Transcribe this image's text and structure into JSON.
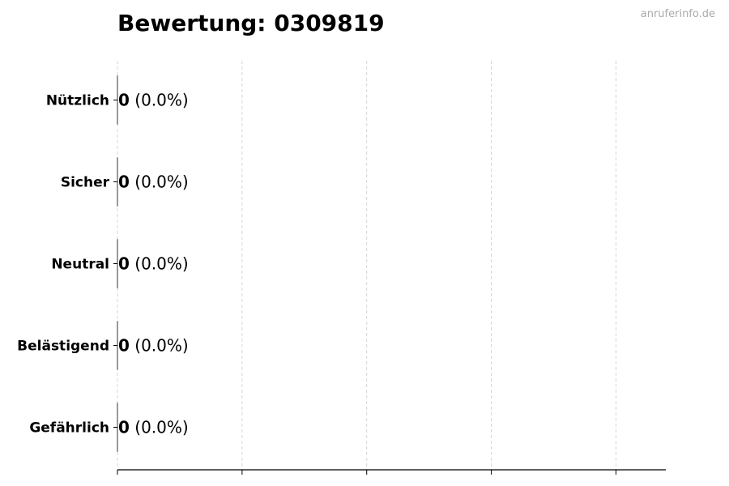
{
  "chart_data": {
    "type": "bar",
    "orientation": "horizontal",
    "title": "Bewertung: 0309819",
    "categories": [
      "Nützlich",
      "Sicher",
      "Neutral",
      "Belästigend",
      "Gefährlich"
    ],
    "values": [
      0,
      0,
      0,
      0,
      0
    ],
    "data_labels": [
      {
        "count": "0",
        "percent": "(0.0%)"
      },
      {
        "count": "0",
        "percent": "(0.0%)"
      },
      {
        "count": "0",
        "percent": "(0.0%)"
      },
      {
        "count": "0",
        "percent": "(0.0%)"
      },
      {
        "count": "0",
        "percent": "(0.0%)"
      }
    ],
    "xlabel": "",
    "ylabel": "",
    "xlim": [
      0,
      4.4
    ],
    "xticks": [
      0,
      1,
      2,
      3,
      4
    ],
    "xtick_labels_shown": false,
    "grid": "x dashed",
    "bar_edge_color": "#333333",
    "grid_color": "#cccccc"
  },
  "watermark": "anruferinfo.de"
}
